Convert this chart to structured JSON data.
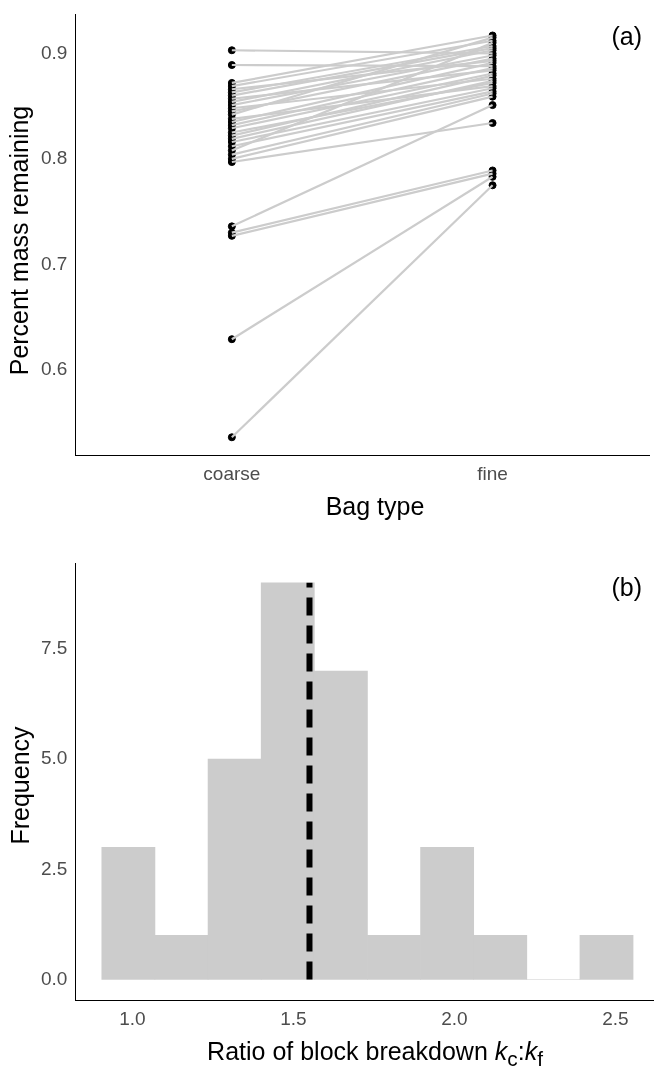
{
  "chart_data": [
    {
      "type": "line",
      "xlabel": "Bag type",
      "ylabel": "Percent mass remaining",
      "annotations": [
        "(a)"
      ],
      "categories": [
        "coarse",
        "fine"
      ],
      "ylim": [
        0.519,
        0.937
      ],
      "yticks": [
        0.6,
        0.7,
        0.8,
        0.9
      ],
      "grid": false,
      "marker": "none",
      "line_style": "solid",
      "series": [
        {
          "color": "#cccccc",
          "values": [
            0.903,
            0.9
          ]
        },
        {
          "color": "#cccccc",
          "values": [
            0.889,
            0.888
          ]
        },
        {
          "color": "#cccccc",
          "values": [
            0.872,
            0.917
          ]
        },
        {
          "color": "#cccccc",
          "values": [
            0.869,
            0.912
          ]
        },
        {
          "color": "#cccccc",
          "values": [
            0.866,
            0.893
          ]
        },
        {
          "color": "#cccccc",
          "values": [
            0.863,
            0.907
          ]
        },
        {
          "color": "#cccccc",
          "values": [
            0.86,
            0.905
          ]
        },
        {
          "color": "#cccccc",
          "values": [
            0.857,
            0.884
          ]
        },
        {
          "color": "#cccccc",
          "values": [
            0.854,
            0.903
          ]
        },
        {
          "color": "#cccccc",
          "values": [
            0.851,
            0.898
          ]
        },
        {
          "color": "#cccccc",
          "values": [
            0.848,
            0.876
          ]
        },
        {
          "color": "#cccccc",
          "values": [
            0.845,
            0.895
          ]
        },
        {
          "color": "#cccccc",
          "values": [
            0.842,
            0.915
          ]
        },
        {
          "color": "#cccccc",
          "values": [
            0.838,
            0.869
          ]
        },
        {
          "color": "#cccccc",
          "values": [
            0.835,
            0.891
          ]
        },
        {
          "color": "#cccccc",
          "values": [
            0.832,
            0.886
          ]
        },
        {
          "color": "#cccccc",
          "values": [
            0.829,
            0.881
          ]
        },
        {
          "color": "#cccccc",
          "values": [
            0.825,
            0.872
          ]
        },
        {
          "color": "#cccccc",
          "values": [
            0.822,
            0.879
          ]
        },
        {
          "color": "#cccccc",
          "values": [
            0.819,
            0.874
          ]
        },
        {
          "color": "#cccccc",
          "values": [
            0.816,
            0.867
          ]
        },
        {
          "color": "#cccccc",
          "values": [
            0.812,
            0.864
          ]
        },
        {
          "color": "#cccccc",
          "values": [
            0.808,
            0.91
          ]
        },
        {
          "color": "#cccccc",
          "values": [
            0.804,
            0.862
          ]
        },
        {
          "color": "#cccccc",
          "values": [
            0.8,
            0.859
          ]
        },
        {
          "color": "#cccccc",
          "values": [
            0.797,
            0.834
          ]
        },
        {
          "color": "#cccccc",
          "values": [
            0.736,
            0.851
          ]
        },
        {
          "color": "#cccccc",
          "values": [
            0.73,
            0.789
          ]
        },
        {
          "color": "#cccccc",
          "values": [
            0.727,
            0.786
          ]
        },
        {
          "color": "#cccccc",
          "values": [
            0.629,
            0.783
          ]
        },
        {
          "color": "#cccccc",
          "values": [
            0.536,
            0.775
          ]
        },
        {
          "type": "scatter",
          "marker": "circle",
          "color": "#000000",
          "x": [
            "coarse",
            "coarse",
            "coarse",
            "coarse",
            "coarse",
            "coarse",
            "coarse",
            "coarse",
            "coarse",
            "coarse",
            "coarse",
            "coarse",
            "coarse",
            "coarse",
            "coarse",
            "coarse",
            "coarse",
            "coarse",
            "coarse",
            "coarse",
            "coarse",
            "coarse",
            "coarse",
            "coarse",
            "coarse",
            "coarse",
            "coarse",
            "coarse",
            "coarse",
            "coarse",
            "coarse",
            "fine",
            "fine",
            "fine",
            "fine",
            "fine",
            "fine",
            "fine",
            "fine",
            "fine",
            "fine",
            "fine",
            "fine",
            "fine",
            "fine",
            "fine",
            "fine",
            "fine",
            "fine",
            "fine",
            "fine",
            "fine",
            "fine",
            "fine",
            "fine",
            "fine",
            "fine",
            "fine",
            "fine",
            "fine",
            "fine",
            "fine"
          ],
          "values": [
            0.903,
            0.889,
            0.872,
            0.869,
            0.866,
            0.863,
            0.86,
            0.857,
            0.854,
            0.851,
            0.848,
            0.845,
            0.842,
            0.838,
            0.835,
            0.832,
            0.829,
            0.825,
            0.822,
            0.819,
            0.816,
            0.812,
            0.808,
            0.804,
            0.8,
            0.797,
            0.736,
            0.73,
            0.727,
            0.629,
            0.536,
            0.9,
            0.888,
            0.917,
            0.912,
            0.893,
            0.907,
            0.905,
            0.884,
            0.903,
            0.898,
            0.876,
            0.895,
            0.915,
            0.869,
            0.891,
            0.886,
            0.881,
            0.872,
            0.879,
            0.874,
            0.867,
            0.864,
            0.91,
            0.862,
            0.859,
            0.834,
            0.851,
            0.789,
            0.786,
            0.783,
            0.775
          ]
        }
      ]
    },
    {
      "type": "histogram",
      "xlabel": "Ratio of block breakdown k$_{c}$:k$_{f}$",
      "ylabel": "Frequency",
      "annotations": [
        "(b)"
      ],
      "color": "#cccccc",
      "grid": false,
      "bins": [
        0.905,
        1.07,
        1.235,
        1.4,
        1.565,
        1.73,
        1.895,
        2.06,
        2.225,
        2.39,
        2.555
      ],
      "values": [
        3,
        1,
        5,
        9,
        7,
        1,
        3,
        1,
        0,
        1
      ],
      "xlim": [
        0.823,
        2.62
      ],
      "xticks": [
        {
          "value": 1,
          "label": "1.0"
        },
        1.5,
        {
          "value": 2,
          "label": "2.0"
        },
        2.5
      ],
      "ylim": [
        -0.47,
        9.45
      ],
      "yticks": [
        {
          "value": 0,
          "label": "0.0"
        },
        2.5,
        {
          "value": 5,
          "label": "5.0"
        },
        7.5
      ],
      "ref_lines": [
        {
          "axis": "x",
          "value": 1.55,
          "color": "#000000",
          "line_style": "dashed"
        }
      ]
    }
  ]
}
